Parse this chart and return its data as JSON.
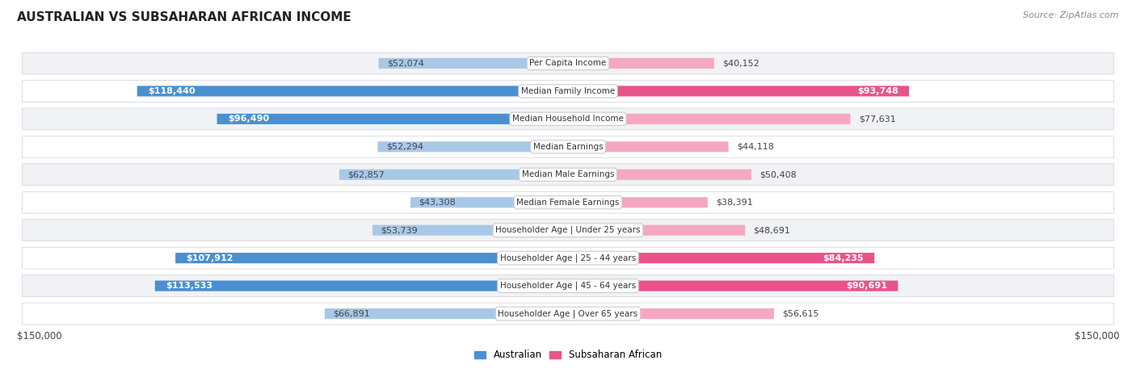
{
  "title": "AUSTRALIAN VS SUBSAHARAN AFRICAN INCOME",
  "source": "Source: ZipAtlas.com",
  "categories": [
    "Per Capita Income",
    "Median Family Income",
    "Median Household Income",
    "Median Earnings",
    "Median Male Earnings",
    "Median Female Earnings",
    "Householder Age | Under 25 years",
    "Householder Age | 25 - 44 years",
    "Householder Age | 45 - 64 years",
    "Householder Age | Over 65 years"
  ],
  "australian_values": [
    52074,
    118440,
    96490,
    52294,
    62857,
    43308,
    53739,
    107912,
    113533,
    66891
  ],
  "subsaharan_values": [
    40152,
    93748,
    77631,
    44118,
    50408,
    38391,
    48691,
    84235,
    90691,
    56615
  ],
  "australian_labels": [
    "$52,074",
    "$118,440",
    "$96,490",
    "$52,294",
    "$62,857",
    "$43,308",
    "$53,739",
    "$107,912",
    "$113,533",
    "$66,891"
  ],
  "subsaharan_labels": [
    "$40,152",
    "$93,748",
    "$77,631",
    "$44,118",
    "$50,408",
    "$38,391",
    "$48,691",
    "$84,235",
    "$90,691",
    "$56,615"
  ],
  "max_value": 150000,
  "australian_color_light": "#a8c8e8",
  "australian_color_dark": "#4a90d0",
  "subsaharan_color_light": "#f5a8c0",
  "subsaharan_color_dark": "#e8538a",
  "threshold": 80000,
  "bg_color": "#ffffff",
  "row_bg_odd": "#f0f2f5",
  "row_bg_even": "#ffffff",
  "xlabel_left": "$150,000",
  "xlabel_right": "$150,000",
  "legend_aus": "Australian",
  "legend_sub": "Subsaharan African"
}
